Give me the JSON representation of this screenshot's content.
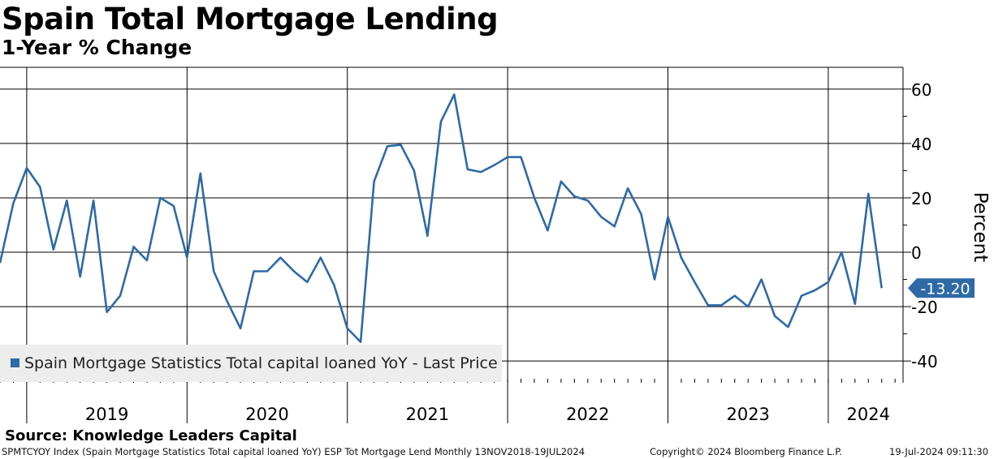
{
  "header": {
    "title": "Spain Total Mortgage Lending",
    "subtitle": "1-Year % Change"
  },
  "legend": {
    "label": "Spain Mortgage Statistics Total capital loaned YoY - Last Price"
  },
  "last_price_label": "-13.20",
  "source": "Source: Knowledge Leaders Capital",
  "footer": {
    "left": "SPMTCYOY Index (Spain Mortgage Statistics Total capital loaned YoY) ESP Tot Mortgage Lend  Monthly 13NOV2018-19JUL2024",
    "mid": "Copyright© 2024 Bloomberg Finance L.P.",
    "right": "19-Jul-2024 09:11:30"
  },
  "colors": {
    "series": "#2e6aa6",
    "grid": "#000000",
    "legend_bg": "#ededed",
    "label_bg": "#2e6aa6"
  },
  "chart_data": {
    "type": "line",
    "title": "Spain Total Mortgage Lending",
    "subtitle": "1-Year % Change",
    "ylabel": "Percent",
    "xlabel": "",
    "ylim": [
      -48,
      68
    ],
    "y_ticks": [
      60,
      40,
      20,
      0,
      -20,
      -40
    ],
    "x_tick_labels": [
      "2019",
      "2020",
      "2021",
      "2022",
      "2023",
      "2024"
    ],
    "x_range": [
      "2018-11",
      "2024-07"
    ],
    "legend_position": "bottom-left",
    "grid": true,
    "series": [
      {
        "name": "Spain Mortgage Statistics Total capital loaned YoY - Last Price",
        "last_value": -13.2,
        "x": [
          "2018-11",
          "2018-12",
          "2019-01",
          "2019-02",
          "2019-03",
          "2019-04",
          "2019-05",
          "2019-06",
          "2019-07",
          "2019-08",
          "2019-09",
          "2019-10",
          "2019-11",
          "2019-12",
          "2020-01",
          "2020-02",
          "2020-03",
          "2020-04",
          "2020-05",
          "2020-06",
          "2020-07",
          "2020-08",
          "2020-09",
          "2020-10",
          "2020-11",
          "2020-12",
          "2021-01",
          "2021-02",
          "2021-03",
          "2021-04",
          "2021-05",
          "2021-06",
          "2021-07",
          "2021-08",
          "2021-09",
          "2021-10",
          "2021-11",
          "2021-12",
          "2022-01",
          "2022-02",
          "2022-03",
          "2022-04",
          "2022-05",
          "2022-06",
          "2022-07",
          "2022-08",
          "2022-09",
          "2022-10",
          "2022-11",
          "2022-12",
          "2023-01",
          "2023-02",
          "2023-03",
          "2023-04",
          "2023-05",
          "2023-06",
          "2023-07",
          "2023-08",
          "2023-09",
          "2023-10",
          "2023-11",
          "2023-12",
          "2024-01",
          "2024-02",
          "2024-03",
          "2024-04",
          "2024-05"
        ],
        "values": [
          -4,
          18,
          31,
          24,
          1,
          19,
          -9,
          19,
          -22,
          -16,
          2,
          -3,
          20,
          17,
          -2,
          29,
          -7,
          -18,
          -28,
          -7,
          -7,
          -2,
          -7,
          -11,
          -2,
          -12,
          -28,
          -33,
          26,
          39,
          39.5,
          30,
          6,
          48,
          58,
          30.5,
          29.5,
          32,
          35,
          35,
          20,
          8,
          26,
          20.5,
          19,
          13,
          9.5,
          23.5,
          14,
          -10,
          13,
          -2,
          -11,
          -19.5,
          -19.5,
          -16,
          -20,
          -10,
          -23.5,
          -27.5,
          -16,
          -14,
          -11,
          0,
          -19,
          21.5,
          -13.2
        ]
      }
    ]
  }
}
